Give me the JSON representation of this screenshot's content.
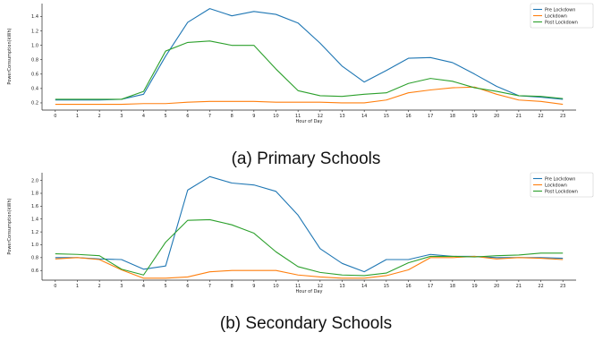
{
  "colors": {
    "pre": "#1f77b4",
    "lockdown": "#ff7f0e",
    "post": "#2ca02c"
  },
  "chart_data": [
    {
      "type": "line",
      "caption": "(a) Primary Schools",
      "xlabel": "Hour of Day",
      "ylabel": "PowerConsumption(kWh)",
      "x": [
        0,
        1,
        2,
        3,
        4,
        5,
        6,
        7,
        8,
        9,
        10,
        11,
        12,
        13,
        14,
        15,
        16,
        17,
        18,
        19,
        20,
        21,
        22,
        23
      ],
      "ylim": [
        0.1,
        1.58
      ],
      "yticks": [
        0.2,
        0.4,
        0.6,
        0.8,
        1.0,
        1.2,
        1.4
      ],
      "ytick_labels": [
        "0.2",
        "0.4",
        "0.6",
        "0.8",
        "1.0",
        "1.2",
        "1.4"
      ],
      "legend_position": "top-right",
      "grid": false,
      "series": [
        {
          "name": "Pre Lockdown",
          "color": "#1f77b4",
          "values": [
            0.24,
            0.24,
            0.24,
            0.25,
            0.32,
            0.85,
            1.32,
            1.51,
            1.41,
            1.47,
            1.43,
            1.31,
            1.03,
            0.71,
            0.49,
            0.65,
            0.82,
            0.83,
            0.76,
            0.6,
            0.43,
            0.3,
            0.28,
            0.25
          ]
        },
        {
          "name": "Lockdown",
          "color": "#ff7f0e",
          "values": [
            0.18,
            0.18,
            0.18,
            0.18,
            0.19,
            0.19,
            0.21,
            0.22,
            0.22,
            0.22,
            0.21,
            0.21,
            0.21,
            0.2,
            0.2,
            0.24,
            0.34,
            0.38,
            0.41,
            0.42,
            0.32,
            0.24,
            0.22,
            0.18
          ]
        },
        {
          "name": "Post Lockdown",
          "color": "#2ca02c",
          "values": [
            0.25,
            0.25,
            0.25,
            0.25,
            0.36,
            0.92,
            1.04,
            1.06,
            1.0,
            1.0,
            0.67,
            0.37,
            0.3,
            0.29,
            0.32,
            0.34,
            0.47,
            0.54,
            0.5,
            0.41,
            0.36,
            0.3,
            0.29,
            0.26
          ]
        }
      ]
    },
    {
      "type": "line",
      "caption": "(b) Secondary Schools",
      "xlabel": "Hour of Day",
      "ylabel": "PowerConsumption(kWh)",
      "x": [
        0,
        1,
        2,
        3,
        4,
        5,
        6,
        7,
        8,
        9,
        10,
        11,
        12,
        13,
        14,
        15,
        16,
        17,
        18,
        19,
        20,
        21,
        22,
        23
      ],
      "ylim": [
        0.45,
        2.12
      ],
      "yticks": [
        0.6,
        0.8,
        1.0,
        1.2,
        1.4,
        1.6,
        1.8,
        2.0
      ],
      "ytick_labels": [
        "0.6",
        "0.8",
        "1.0",
        "1.2",
        "1.4",
        "1.6",
        "1.8",
        "2.0"
      ],
      "legend_position": "top-right",
      "grid": false,
      "series": [
        {
          "name": "Pre Lockdown",
          "color": "#1f77b4",
          "values": [
            0.8,
            0.8,
            0.78,
            0.77,
            0.62,
            0.67,
            1.85,
            2.06,
            1.96,
            1.93,
            1.83,
            1.46,
            0.94,
            0.71,
            0.58,
            0.77,
            0.77,
            0.85,
            0.82,
            0.82,
            0.8,
            0.8,
            0.8,
            0.79
          ]
        },
        {
          "name": "Lockdown",
          "color": "#ff7f0e",
          "values": [
            0.78,
            0.8,
            0.77,
            0.61,
            0.48,
            0.48,
            0.5,
            0.58,
            0.6,
            0.6,
            0.6,
            0.53,
            0.5,
            0.48,
            0.48,
            0.52,
            0.61,
            0.8,
            0.8,
            0.82,
            0.78,
            0.8,
            0.79,
            0.77
          ]
        },
        {
          "name": "Post Lockdown",
          "color": "#2ca02c",
          "values": [
            0.86,
            0.85,
            0.83,
            0.62,
            0.53,
            1.04,
            1.38,
            1.39,
            1.31,
            1.18,
            0.89,
            0.66,
            0.57,
            0.53,
            0.52,
            0.56,
            0.72,
            0.82,
            0.82,
            0.81,
            0.83,
            0.84,
            0.87,
            0.87
          ]
        }
      ]
    }
  ]
}
